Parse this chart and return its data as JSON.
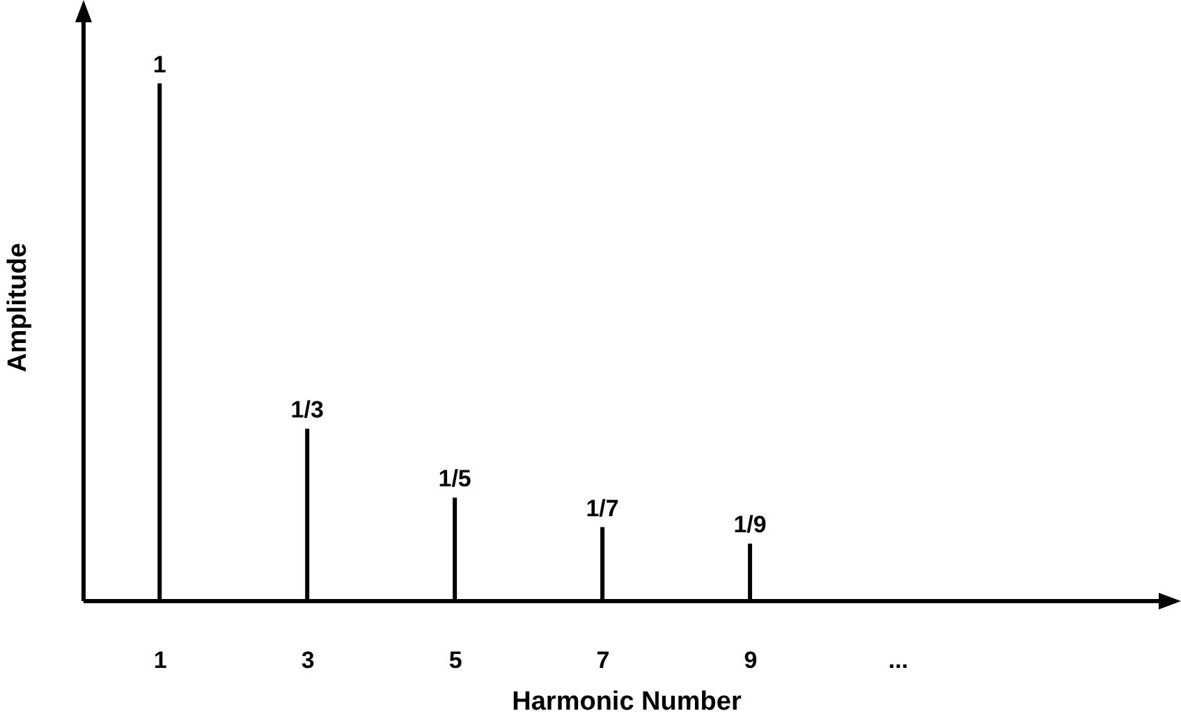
{
  "chart_data": {
    "type": "bar",
    "xlabel": "Harmonic Number",
    "ylabel": "Amplitude",
    "color": "#000000",
    "categories": [
      "1",
      "3",
      "5",
      "7",
      "9",
      "..."
    ],
    "values": [
      1,
      0.333,
      0.2,
      0.143,
      0.111,
      null
    ],
    "value_labels": [
      "1",
      "1/3",
      "1/5",
      "1/7",
      "1/9",
      null
    ]
  }
}
